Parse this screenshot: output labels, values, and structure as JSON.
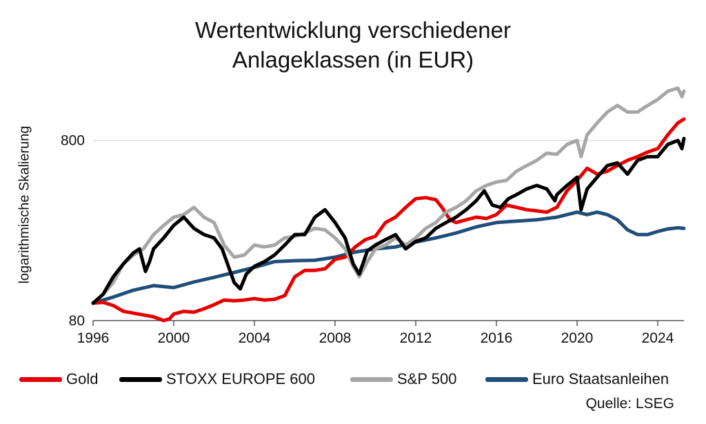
{
  "chart_data": {
    "type": "line",
    "title_line1": "Wertentwicklung verschiedener",
    "title_line2": "Anlageklassen (in EUR)",
    "ylabel": "logarithmische Skalierung",
    "yscale": "log",
    "ylim": [
      80,
      1600
    ],
    "xlim": [
      1996,
      2025.3
    ],
    "xticks": [
      "1996",
      "2000",
      "2004",
      "2008",
      "2012",
      "2016",
      "2020",
      "2024"
    ],
    "yticks": [
      "80",
      "800"
    ],
    "grid": "horizontal at 800",
    "legend_position": "bottom",
    "source": "Quelle: LSEG",
    "series": [
      {
        "name": "Gold",
        "color": "#e60000",
        "points": [
          [
            1996.0,
            100
          ],
          [
            1996.5,
            101
          ],
          [
            1997.0,
            97
          ],
          [
            1997.5,
            90
          ],
          [
            1998.0,
            88
          ],
          [
            1998.5,
            86
          ],
          [
            1999.0,
            84
          ],
          [
            1999.5,
            80
          ],
          [
            1999.8,
            82
          ],
          [
            2000.0,
            87
          ],
          [
            2000.5,
            90
          ],
          [
            2001.0,
            89
          ],
          [
            2001.5,
            93
          ],
          [
            2002.0,
            98
          ],
          [
            2002.5,
            104
          ],
          [
            2003.0,
            103
          ],
          [
            2003.5,
            104
          ],
          [
            2004.0,
            106
          ],
          [
            2004.5,
            104
          ],
          [
            2005.0,
            105
          ],
          [
            2005.5,
            110
          ],
          [
            2006.0,
            140
          ],
          [
            2006.5,
            152
          ],
          [
            2007.0,
            152
          ],
          [
            2007.5,
            155
          ],
          [
            2008.0,
            175
          ],
          [
            2008.5,
            180
          ],
          [
            2009.0,
            205
          ],
          [
            2009.5,
            225
          ],
          [
            2010.0,
            235
          ],
          [
            2010.5,
            280
          ],
          [
            2011.0,
            300
          ],
          [
            2011.5,
            340
          ],
          [
            2012.0,
            380
          ],
          [
            2012.5,
            385
          ],
          [
            2013.0,
            375
          ],
          [
            2013.3,
            340
          ],
          [
            2013.7,
            290
          ],
          [
            2014.0,
            280
          ],
          [
            2014.5,
            290
          ],
          [
            2015.0,
            300
          ],
          [
            2015.5,
            295
          ],
          [
            2016.0,
            310
          ],
          [
            2016.5,
            350
          ],
          [
            2017.0,
            340
          ],
          [
            2017.5,
            330
          ],
          [
            2018.0,
            325
          ],
          [
            2018.5,
            320
          ],
          [
            2019.0,
            340
          ],
          [
            2019.5,
            420
          ],
          [
            2020.0,
            480
          ],
          [
            2020.5,
            560
          ],
          [
            2021.0,
            520
          ],
          [
            2021.5,
            540
          ],
          [
            2022.0,
            580
          ],
          [
            2022.5,
            620
          ],
          [
            2023.0,
            650
          ],
          [
            2023.5,
            690
          ],
          [
            2024.0,
            720
          ],
          [
            2024.5,
            860
          ],
          [
            2025.0,
            1000
          ],
          [
            2025.3,
            1050
          ]
        ]
      },
      {
        "name": "STOXX EUROPE 600",
        "color": "#000000",
        "points": [
          [
            1996.0,
            100
          ],
          [
            1996.5,
            112
          ],
          [
            1997.0,
            140
          ],
          [
            1997.5,
            165
          ],
          [
            1998.0,
            190
          ],
          [
            1998.3,
            200
          ],
          [
            1998.6,
            150
          ],
          [
            1998.8,
            170
          ],
          [
            1999.0,
            200
          ],
          [
            1999.5,
            230
          ],
          [
            2000.0,
            270
          ],
          [
            2000.5,
            300
          ],
          [
            2001.0,
            260
          ],
          [
            2001.5,
            240
          ],
          [
            2002.0,
            230
          ],
          [
            2002.4,
            200
          ],
          [
            2002.8,
            150
          ],
          [
            2003.0,
            130
          ],
          [
            2003.3,
            120
          ],
          [
            2003.6,
            145
          ],
          [
            2004.0,
            160
          ],
          [
            2004.5,
            170
          ],
          [
            2005.0,
            185
          ],
          [
            2005.5,
            210
          ],
          [
            2006.0,
            240
          ],
          [
            2006.5,
            240
          ],
          [
            2007.0,
            300
          ],
          [
            2007.5,
            330
          ],
          [
            2008.0,
            280
          ],
          [
            2008.5,
            230
          ],
          [
            2008.9,
            165
          ],
          [
            2009.2,
            145
          ],
          [
            2009.6,
            195
          ],
          [
            2010.0,
            210
          ],
          [
            2010.5,
            225
          ],
          [
            2011.0,
            240
          ],
          [
            2011.5,
            200
          ],
          [
            2012.0,
            220
          ],
          [
            2012.5,
            230
          ],
          [
            2013.0,
            260
          ],
          [
            2013.5,
            280
          ],
          [
            2014.0,
            300
          ],
          [
            2014.5,
            330
          ],
          [
            2015.0,
            370
          ],
          [
            2015.4,
            420
          ],
          [
            2015.8,
            350
          ],
          [
            2016.2,
            340
          ],
          [
            2016.6,
            380
          ],
          [
            2017.0,
            400
          ],
          [
            2017.5,
            430
          ],
          [
            2018.0,
            450
          ],
          [
            2018.5,
            430
          ],
          [
            2018.9,
            370
          ],
          [
            2019.0,
            400
          ],
          [
            2019.5,
            450
          ],
          [
            2020.0,
            500
          ],
          [
            2020.2,
            330
          ],
          [
            2020.5,
            430
          ],
          [
            2021.0,
            500
          ],
          [
            2021.5,
            580
          ],
          [
            2022.0,
            600
          ],
          [
            2022.5,
            520
          ],
          [
            2023.0,
            620
          ],
          [
            2023.5,
            650
          ],
          [
            2024.0,
            650
          ],
          [
            2024.5,
            760
          ],
          [
            2025.0,
            800
          ],
          [
            2025.2,
            720
          ],
          [
            2025.3,
            820
          ]
        ]
      },
      {
        "name": "S&P 500",
        "color": "#a6a6a6",
        "points": [
          [
            1996.0,
            100
          ],
          [
            1996.5,
            112
          ],
          [
            1997.0,
            130
          ],
          [
            1997.5,
            165
          ],
          [
            1998.0,
            185
          ],
          [
            1998.5,
            200
          ],
          [
            1999.0,
            240
          ],
          [
            1999.5,
            270
          ],
          [
            2000.0,
            300
          ],
          [
            2000.5,
            310
          ],
          [
            2001.0,
            340
          ],
          [
            2001.5,
            300
          ],
          [
            2002.0,
            280
          ],
          [
            2002.5,
            210
          ],
          [
            2003.0,
            180
          ],
          [
            2003.5,
            185
          ],
          [
            2004.0,
            210
          ],
          [
            2004.5,
            205
          ],
          [
            2005.0,
            210
          ],
          [
            2005.5,
            230
          ],
          [
            2006.0,
            235
          ],
          [
            2006.5,
            245
          ],
          [
            2007.0,
            260
          ],
          [
            2007.5,
            255
          ],
          [
            2008.0,
            230
          ],
          [
            2008.5,
            200
          ],
          [
            2008.9,
            160
          ],
          [
            2009.2,
            140
          ],
          [
            2009.6,
            170
          ],
          [
            2010.0,
            200
          ],
          [
            2010.5,
            210
          ],
          [
            2011.0,
            230
          ],
          [
            2011.5,
            210
          ],
          [
            2012.0,
            230
          ],
          [
            2012.5,
            260
          ],
          [
            2013.0,
            280
          ],
          [
            2013.5,
            320
          ],
          [
            2014.0,
            340
          ],
          [
            2014.5,
            370
          ],
          [
            2015.0,
            420
          ],
          [
            2015.5,
            450
          ],
          [
            2016.0,
            470
          ],
          [
            2016.5,
            480
          ],
          [
            2017.0,
            540
          ],
          [
            2017.5,
            580
          ],
          [
            2018.0,
            620
          ],
          [
            2018.5,
            680
          ],
          [
            2019.0,
            670
          ],
          [
            2019.5,
            760
          ],
          [
            2020.0,
            800
          ],
          [
            2020.2,
            650
          ],
          [
            2020.5,
            860
          ],
          [
            2021.0,
            1000
          ],
          [
            2021.5,
            1150
          ],
          [
            2022.0,
            1250
          ],
          [
            2022.5,
            1150
          ],
          [
            2023.0,
            1150
          ],
          [
            2023.5,
            1250
          ],
          [
            2024.0,
            1350
          ],
          [
            2024.5,
            1500
          ],
          [
            2025.0,
            1560
          ],
          [
            2025.2,
            1400
          ],
          [
            2025.3,
            1500
          ]
        ]
      },
      {
        "name": "Euro Staatsanleihen",
        "color": "#1f4e79",
        "points": [
          [
            1996.0,
            100
          ],
          [
            1997.0,
            108
          ],
          [
            1998.0,
            118
          ],
          [
            1999.0,
            125
          ],
          [
            2000.0,
            122
          ],
          [
            2001.0,
            131
          ],
          [
            2002.0,
            139
          ],
          [
            2003.0,
            148
          ],
          [
            2004.0,
            158
          ],
          [
            2005.0,
            170
          ],
          [
            2006.0,
            172
          ],
          [
            2007.0,
            173
          ],
          [
            2008.0,
            180
          ],
          [
            2009.0,
            192
          ],
          [
            2010.0,
            200
          ],
          [
            2011.0,
            205
          ],
          [
            2012.0,
            218
          ],
          [
            2013.0,
            230
          ],
          [
            2014.0,
            245
          ],
          [
            2015.0,
            265
          ],
          [
            2016.0,
            280
          ],
          [
            2017.0,
            285
          ],
          [
            2018.0,
            290
          ],
          [
            2019.0,
            300
          ],
          [
            2020.0,
            320
          ],
          [
            2020.5,
            310
          ],
          [
            2021.0,
            320
          ],
          [
            2021.5,
            310
          ],
          [
            2022.0,
            290
          ],
          [
            2022.5,
            255
          ],
          [
            2023.0,
            240
          ],
          [
            2023.5,
            240
          ],
          [
            2024.0,
            250
          ],
          [
            2024.5,
            258
          ],
          [
            2025.0,
            262
          ],
          [
            2025.3,
            260
          ]
        ]
      }
    ]
  }
}
